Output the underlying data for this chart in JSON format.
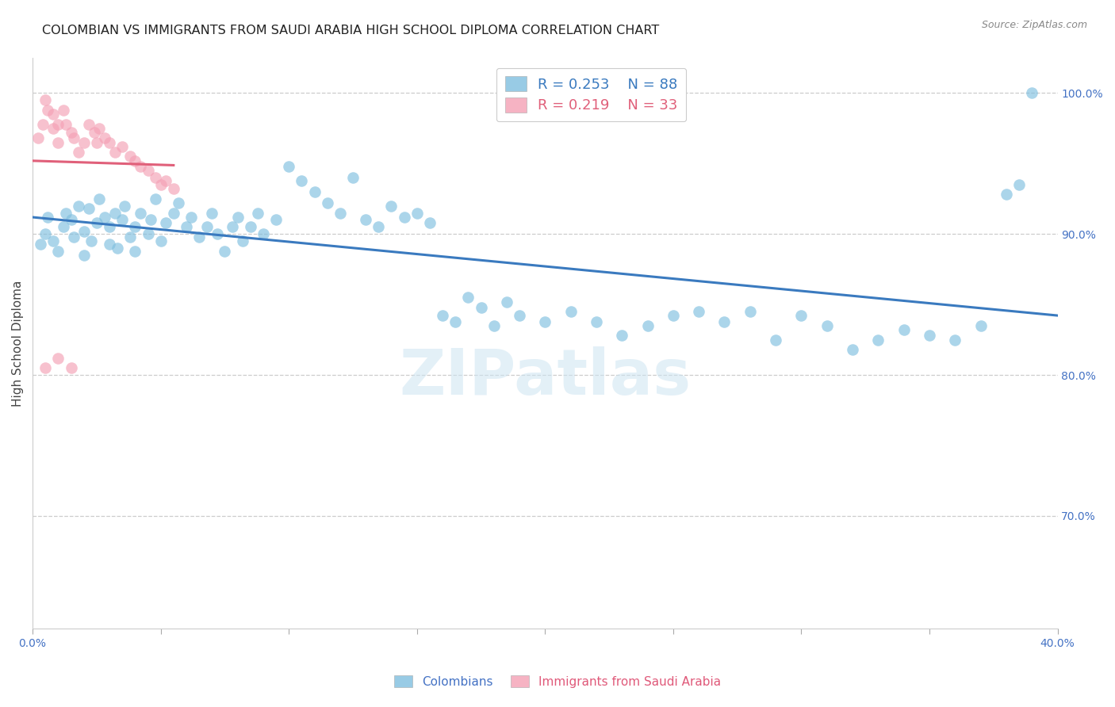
{
  "title": "COLOMBIAN VS IMMIGRANTS FROM SAUDI ARABIA HIGH SCHOOL DIPLOMA CORRELATION CHART",
  "source": "Source: ZipAtlas.com",
  "ylabel": "High School Diploma",
  "right_yticks": [
    "100.0%",
    "90.0%",
    "80.0%",
    "70.0%"
  ],
  "right_ytick_vals": [
    1.0,
    0.9,
    0.8,
    0.7
  ],
  "xmin": 0.0,
  "xmax": 0.4,
  "ymin": 0.62,
  "ymax": 1.025,
  "blue_color": "#7fbfdf",
  "pink_color": "#f4a0b5",
  "blue_line_color": "#3a7abf",
  "pink_line_color": "#e0607a",
  "legend_blue_R": "0.253",
  "legend_blue_N": "88",
  "legend_pink_R": "0.219",
  "legend_pink_N": "33",
  "watermark": "ZIPatlas",
  "title_fontsize": 11.5,
  "source_fontsize": 9,
  "axis_label_fontsize": 11,
  "tick_fontsize": 10,
  "legend_fontsize": 13,
  "background_color": "#ffffff",
  "grid_color": "#cccccc",
  "blue_scatter_x": [
    0.003,
    0.005,
    0.006,
    0.008,
    0.01,
    0.012,
    0.013,
    0.015,
    0.016,
    0.018,
    0.02,
    0.02,
    0.022,
    0.023,
    0.025,
    0.026,
    0.028,
    0.03,
    0.03,
    0.032,
    0.033,
    0.035,
    0.036,
    0.038,
    0.04,
    0.04,
    0.042,
    0.045,
    0.046,
    0.048,
    0.05,
    0.052,
    0.055,
    0.057,
    0.06,
    0.062,
    0.065,
    0.068,
    0.07,
    0.072,
    0.075,
    0.078,
    0.08,
    0.082,
    0.085,
    0.088,
    0.09,
    0.095,
    0.1,
    0.105,
    0.11,
    0.115,
    0.12,
    0.125,
    0.13,
    0.135,
    0.14,
    0.145,
    0.15,
    0.155,
    0.16,
    0.165,
    0.17,
    0.175,
    0.18,
    0.185,
    0.19,
    0.2,
    0.21,
    0.22,
    0.23,
    0.24,
    0.25,
    0.26,
    0.27,
    0.28,
    0.29,
    0.3,
    0.31,
    0.32,
    0.33,
    0.34,
    0.35,
    0.36,
    0.37,
    0.38,
    0.385,
    0.39
  ],
  "blue_scatter_y": [
    0.893,
    0.9,
    0.912,
    0.895,
    0.888,
    0.905,
    0.915,
    0.91,
    0.898,
    0.92,
    0.885,
    0.902,
    0.918,
    0.895,
    0.908,
    0.925,
    0.912,
    0.893,
    0.905,
    0.915,
    0.89,
    0.91,
    0.92,
    0.898,
    0.888,
    0.905,
    0.915,
    0.9,
    0.91,
    0.925,
    0.895,
    0.908,
    0.915,
    0.922,
    0.905,
    0.912,
    0.898,
    0.905,
    0.915,
    0.9,
    0.888,
    0.905,
    0.912,
    0.895,
    0.905,
    0.915,
    0.9,
    0.91,
    0.948,
    0.938,
    0.93,
    0.922,
    0.915,
    0.94,
    0.91,
    0.905,
    0.92,
    0.912,
    0.915,
    0.908,
    0.842,
    0.838,
    0.855,
    0.848,
    0.835,
    0.852,
    0.842,
    0.838,
    0.845,
    0.838,
    0.828,
    0.835,
    0.842,
    0.845,
    0.838,
    0.845,
    0.825,
    0.842,
    0.835,
    0.818,
    0.825,
    0.832,
    0.828,
    0.825,
    0.835,
    0.928,
    0.935,
    1.0
  ],
  "pink_scatter_x": [
    0.002,
    0.004,
    0.005,
    0.006,
    0.008,
    0.008,
    0.01,
    0.01,
    0.012,
    0.013,
    0.015,
    0.016,
    0.018,
    0.02,
    0.022,
    0.024,
    0.025,
    0.026,
    0.028,
    0.03,
    0.032,
    0.035,
    0.038,
    0.04,
    0.042,
    0.045,
    0.048,
    0.05,
    0.052,
    0.055,
    0.005,
    0.01,
    0.015
  ],
  "pink_scatter_y": [
    0.968,
    0.978,
    0.995,
    0.988,
    0.985,
    0.975,
    0.965,
    0.978,
    0.988,
    0.978,
    0.972,
    0.968,
    0.958,
    0.965,
    0.978,
    0.972,
    0.965,
    0.975,
    0.968,
    0.965,
    0.958,
    0.962,
    0.955,
    0.952,
    0.948,
    0.945,
    0.94,
    0.935,
    0.938,
    0.932,
    0.805,
    0.812,
    0.805
  ]
}
